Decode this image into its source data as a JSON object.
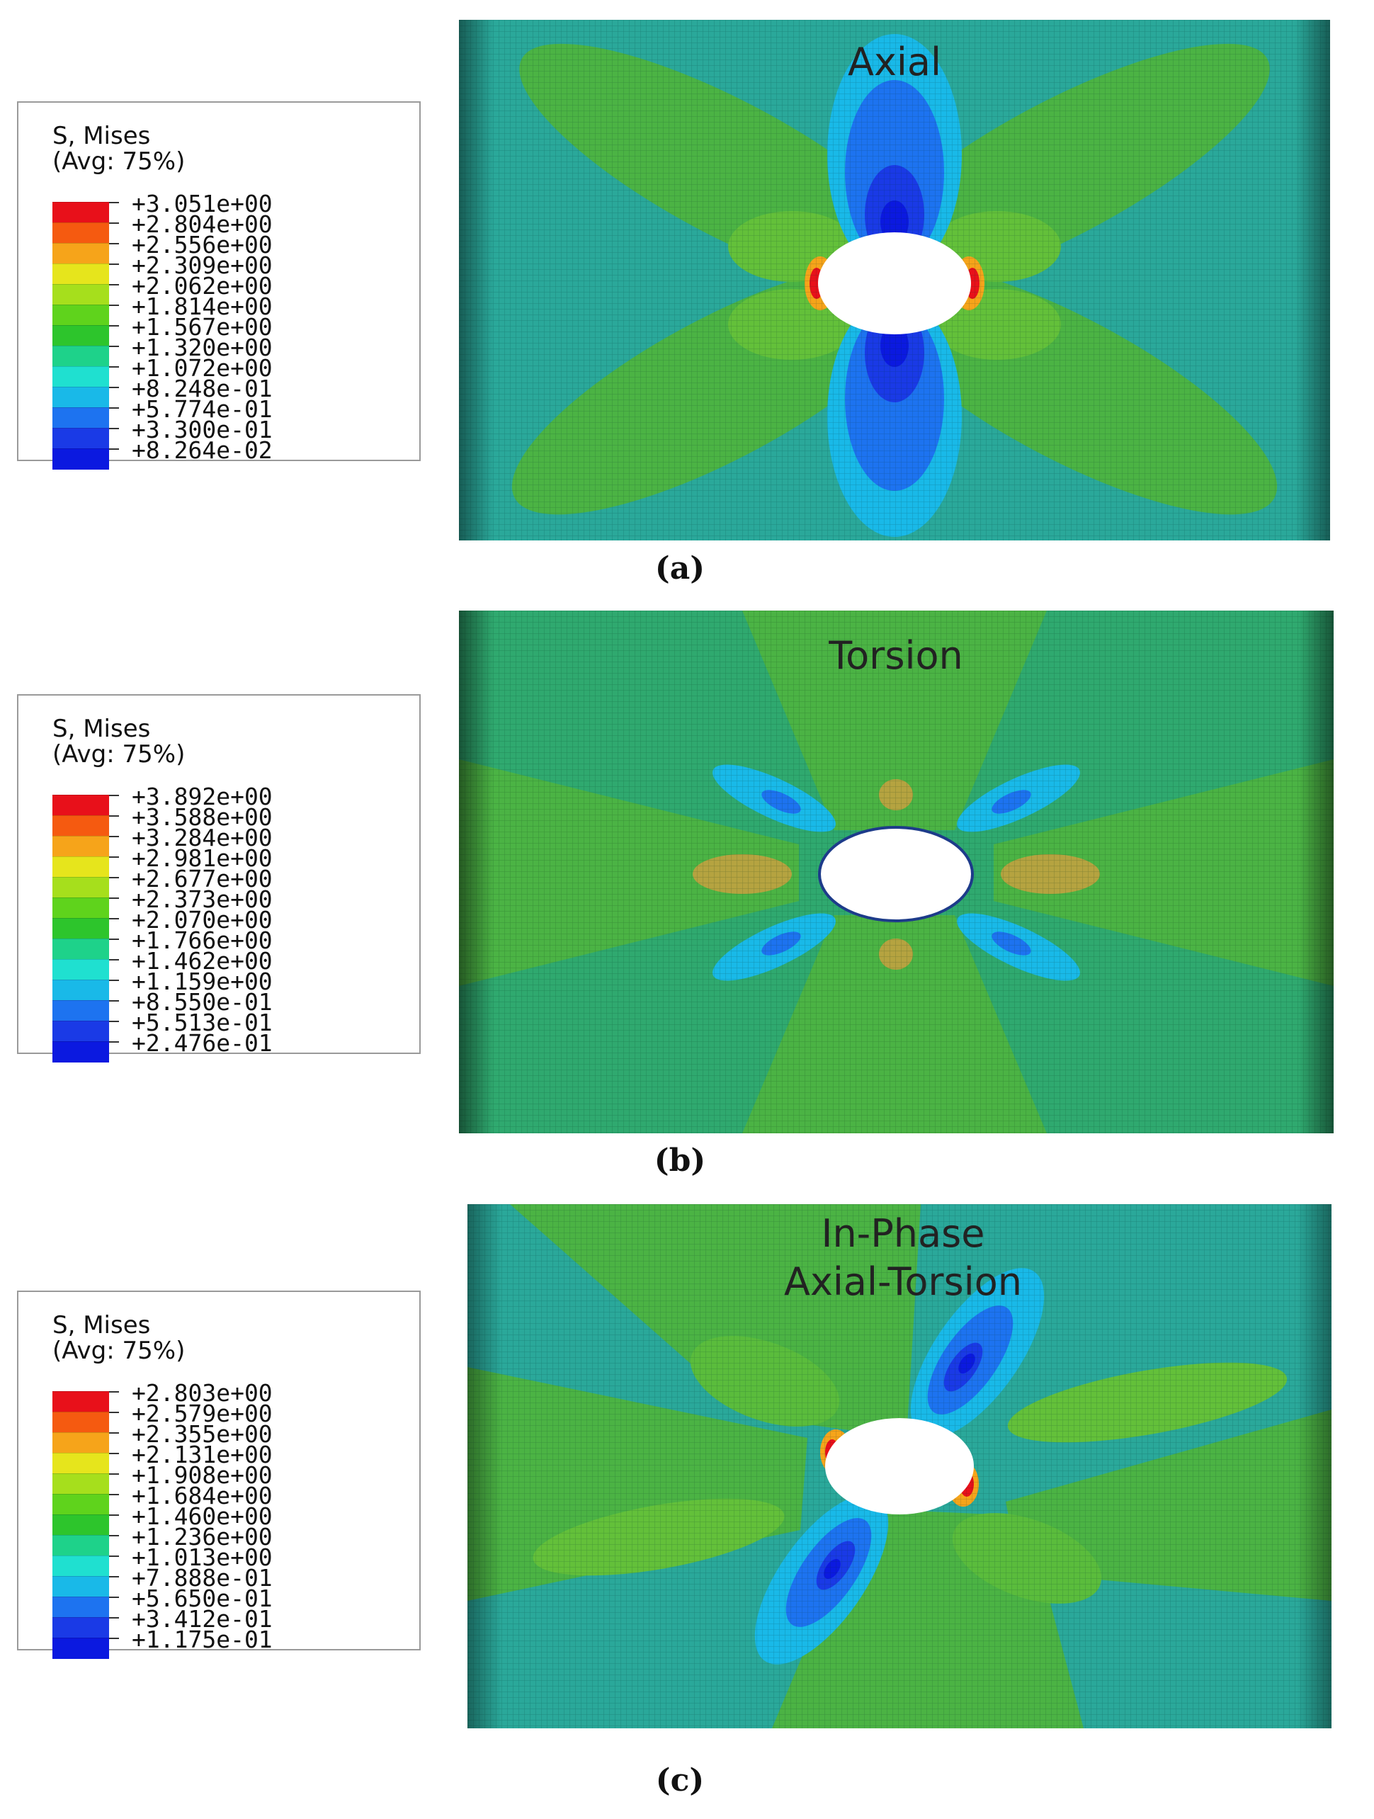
{
  "panels": [
    {
      "id": "a",
      "caption": "(a)",
      "load_case_lines": [
        "Axial"
      ],
      "legend": {
        "variable": "S, Mises",
        "averaging": "(Avg: 75%)",
        "values": [
          "+3.051e+00",
          "+2.804e+00",
          "+2.556e+00",
          "+2.309e+00",
          "+2.062e+00",
          "+1.814e+00",
          "+1.567e+00",
          "+1.320e+00",
          "+1.072e+00",
          "+8.248e-01",
          "+5.774e-01",
          "+3.300e-01",
          "+8.264e-02"
        ]
      }
    },
    {
      "id": "b",
      "caption": "(b)",
      "load_case_lines": [
        "Torsion"
      ],
      "legend": {
        "variable": "S, Mises",
        "averaging": "(Avg: 75%)",
        "values": [
          "+3.892e+00",
          "+3.588e+00",
          "+3.284e+00",
          "+2.981e+00",
          "+2.677e+00",
          "+2.373e+00",
          "+2.070e+00",
          "+1.766e+00",
          "+1.462e+00",
          "+1.159e+00",
          "+8.550e-01",
          "+5.513e-01",
          "+2.476e-01"
        ]
      }
    },
    {
      "id": "c",
      "caption": "(c)",
      "load_case_lines": [
        "In-Phase",
        "Axial-Torsion"
      ],
      "legend": {
        "variable": "S, Mises",
        "averaging": "(Avg: 75%)",
        "values": [
          "+2.803e+00",
          "+2.579e+00",
          "+2.355e+00",
          "+2.131e+00",
          "+1.908e+00",
          "+1.684e+00",
          "+1.460e+00",
          "+1.236e+00",
          "+1.013e+00",
          "+7.888e-01",
          "+5.650e-01",
          "+3.412e-01",
          "+1.175e-01"
        ]
      }
    }
  ],
  "colormap": [
    "#e8101a",
    "#f55a10",
    "#f6a41a",
    "#e6e51c",
    "#a6df1c",
    "#5fd31c",
    "#2dc52c",
    "#1ed28a",
    "#1fe0d0",
    "#19b9e8",
    "#1d73f0",
    "#1a3ae6",
    "#0b19e0"
  ],
  "colors": {
    "background_cyan": "#2aa89a",
    "mesh_green": "#4bb344",
    "hole": "#ffffff",
    "text": "#111111"
  }
}
